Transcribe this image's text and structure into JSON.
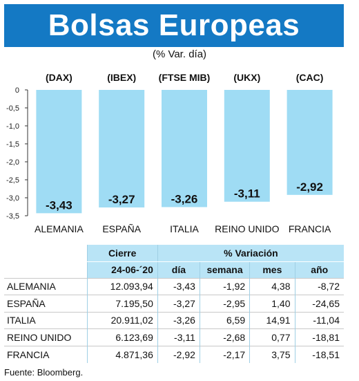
{
  "header": {
    "title": "Bolsas Europeas",
    "subtitle": "(% Var. día)"
  },
  "colors": {
    "title_bg": "#1479c4",
    "bar_fill": "#9fdcf4",
    "table_header_bg": "#b9e4f6"
  },
  "chart_data": {
    "type": "bar",
    "indices": [
      "(DAX)",
      "(IBEX)",
      "(FTSE MIB)",
      "(UKX)",
      "(CAC)"
    ],
    "categories": [
      "ALEMANIA",
      "ESPAÑA",
      "ITALIA",
      "REINO UNIDO",
      "FRANCIA"
    ],
    "values": [
      -3.43,
      -3.27,
      -3.26,
      -3.11,
      -2.92
    ],
    "value_labels": [
      "-3,43",
      "-3,27",
      "-3,26",
      "-3,11",
      "-2,92"
    ],
    "ylim": [
      -3.5,
      0
    ],
    "y_ticks": [
      0,
      -0.5,
      -1,
      -1.5,
      -2,
      -2.5,
      -3,
      -3.5
    ],
    "y_tick_labels": [
      "0",
      "-0,5",
      "-1,0",
      "-1,5",
      "-2,0",
      "-2,5",
      "-3,0",
      "-3,5"
    ]
  },
  "table": {
    "group_headers": [
      "Cierre",
      "% Variación"
    ],
    "columns": [
      "24-06-´20",
      "día",
      "semana",
      "mes",
      "año"
    ],
    "rows": [
      [
        "ALEMANIA",
        "12.093,94",
        "-3,43",
        "-1,92",
        "4,38",
        "-8,72"
      ],
      [
        "ESPAÑA",
        "7.195,50",
        "-3,27",
        "-2,95",
        "1,40",
        "-24,65"
      ],
      [
        "ITALIA",
        "20.911,02",
        "-3,26",
        "6,59",
        "14,91",
        "-11,04"
      ],
      [
        "REINO UNIDO",
        "6.123,69",
        "-3,11",
        "-2,68",
        "0,77",
        "-18,81"
      ],
      [
        "FRANCIA",
        "4.871,36",
        "-2,92",
        "-2,17",
        "3,75",
        "-18,51"
      ]
    ]
  },
  "source": "Fuente: Bloomberg."
}
